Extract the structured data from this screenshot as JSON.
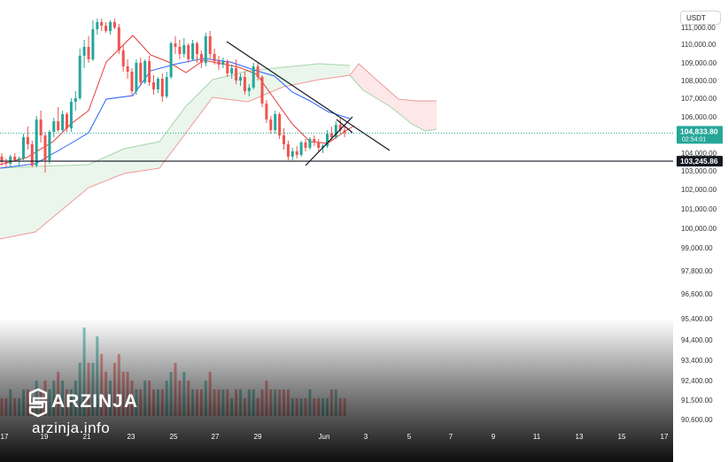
{
  "app": {
    "currency": "USDT",
    "watermark_brand": "ARZINJA",
    "watermark_url": "arzinja.info"
  },
  "colors": {
    "up": "#26a69a",
    "down": "#ef5350",
    "tenkan": "#e53935",
    "kijun": "#2962ff",
    "cloud_green_line": "#a5d6a7",
    "cloud_green_fill": "#e8f5e9",
    "cloud_red_line": "#ef9a9a",
    "cloud_red_fill": "#fde7e7",
    "current_price_label": "#26a69a",
    "level_label": "#131722"
  },
  "chart_data": {
    "type": "candlestick",
    "title": "",
    "y_tick_labels": [
      "111,000.00",
      "110,000.00",
      "109,000.00",
      "108,000.00",
      "107,000.00",
      "106,000.00",
      "104,000.00",
      "103,000.00",
      "102,000.00",
      "101,000.00",
      "100,000.00",
      "99,000.00",
      "97,800.00",
      "96,600.00",
      "95,400.00",
      "94,400.00",
      "93,400.00",
      "92,400.00",
      "91,500.00",
      "90,600.00"
    ],
    "x_tick_labels": [
      "17",
      "19",
      "21",
      "23",
      "25",
      "27",
      "29",
      "Jun",
      "3",
      "5",
      "7",
      "9",
      "11",
      "13",
      "15",
      "17"
    ],
    "ylim": [
      102500,
      111200
    ],
    "current_price": 104833.8,
    "current_price_label": "104,833.80",
    "countdown": "02:54:01",
    "horizontal_level": 103245.86,
    "horizontal_level_label": "103,245.86",
    "candles": [
      [
        103500,
        103700,
        103000,
        103200
      ],
      [
        103200,
        103400,
        102900,
        103100
      ],
      [
        103100,
        103600,
        102900,
        103500
      ],
      [
        103500,
        103700,
        103200,
        103300
      ],
      [
        103300,
        103500,
        103000,
        103400
      ],
      [
        103400,
        104800,
        103300,
        104600
      ],
      [
        104600,
        105200,
        103900,
        104200
      ],
      [
        104200,
        104400,
        102900,
        103000
      ],
      [
        103000,
        105800,
        102900,
        105600
      ],
      [
        105600,
        106100,
        104300,
        104700
      ],
      [
        104700,
        104900,
        102600,
        103300
      ],
      [
        103300,
        105000,
        103100,
        104900
      ],
      [
        104900,
        105700,
        104600,
        105500
      ],
      [
        105500,
        106300,
        104900,
        105000
      ],
      [
        105000,
        106100,
        104900,
        105900
      ],
      [
        105900,
        106000,
        104900,
        105100
      ],
      [
        105100,
        106800,
        104900,
        106600
      ],
      [
        106600,
        107200,
        106100,
        106800
      ],
      [
        106800,
        109600,
        106700,
        109200
      ],
      [
        109200,
        110100,
        108500,
        109700
      ],
      [
        109700,
        110300,
        108800,
        109000
      ],
      [
        109000,
        111200,
        108900,
        110700
      ],
      [
        110700,
        111300,
        110400,
        111100
      ],
      [
        111100,
        111300,
        110600,
        110900
      ],
      [
        110900,
        111100,
        110500,
        110600
      ],
      [
        110600,
        111200,
        110400,
        111100
      ],
      [
        111100,
        111300,
        110700,
        110800
      ],
      [
        110800,
        111000,
        109300,
        109500
      ],
      [
        109500,
        109800,
        108300,
        108600
      ],
      [
        108600,
        109000,
        107900,
        108300
      ],
      [
        108300,
        108500,
        106900,
        107200
      ],
      [
        107200,
        109000,
        107000,
        108800
      ],
      [
        108800,
        109100,
        107500,
        107700
      ],
      [
        107700,
        109000,
        107600,
        108900
      ],
      [
        108900,
        109200,
        107500,
        107700
      ],
      [
        107700,
        108100,
        107000,
        107300
      ],
      [
        107300,
        108000,
        107100,
        107900
      ],
      [
        107900,
        108200,
        106600,
        106900
      ],
      [
        106900,
        108300,
        106800,
        108000
      ],
      [
        108000,
        110000,
        107900,
        109900
      ],
      [
        109900,
        110300,
        109300,
        109700
      ],
      [
        109700,
        110100,
        109000,
        109300
      ],
      [
        109300,
        110200,
        109100,
        109800
      ],
      [
        109800,
        109900,
        108800,
        109000
      ],
      [
        109000,
        110100,
        108900,
        109900
      ],
      [
        109900,
        110000,
        108800,
        109300
      ],
      [
        109300,
        109500,
        108500,
        108800
      ],
      [
        108800,
        110500,
        108600,
        110300
      ],
      [
        110300,
        110600,
        109000,
        109300
      ],
      [
        109300,
        109600,
        108700,
        108900
      ],
      [
        108900,
        109200,
        108400,
        108700
      ],
      [
        108700,
        109100,
        108500,
        108900
      ],
      [
        108900,
        109000,
        108000,
        108200
      ],
      [
        108200,
        108700,
        107900,
        108500
      ],
      [
        108500,
        109000,
        107600,
        107800
      ],
      [
        107800,
        108200,
        107500,
        108000
      ],
      [
        108000,
        108300,
        107000,
        107200
      ],
      [
        107200,
        107600,
        106900,
        107400
      ],
      [
        107400,
        108800,
        107300,
        108600
      ],
      [
        108600,
        108800,
        107800,
        108000
      ],
      [
        108000,
        108100,
        106300,
        106500
      ],
      [
        106500,
        106700,
        105400,
        105600
      ],
      [
        105600,
        105800,
        104800,
        105000
      ],
      [
        105000,
        106100,
        104800,
        105900
      ],
      [
        105900,
        106000,
        104500,
        104700
      ],
      [
        104700,
        105100,
        103900,
        104200
      ],
      [
        104200,
        104400,
        103300,
        103500
      ],
      [
        103500,
        104000,
        103300,
        103800
      ],
      [
        103800,
        104100,
        103400,
        103600
      ],
      [
        103600,
        104400,
        103500,
        104300
      ],
      [
        104300,
        104500,
        103800,
        104000
      ],
      [
        104000,
        104600,
        103900,
        104500
      ],
      [
        104500,
        104700,
        104100,
        104300
      ],
      [
        104300,
        104500,
        103800,
        104000
      ],
      [
        104000,
        104200,
        103700,
        104100
      ],
      [
        104100,
        105000,
        104000,
        104800
      ],
      [
        104800,
        105200,
        104400,
        104600
      ],
      [
        104600,
        105500,
        104500,
        105300
      ],
      [
        105300,
        105700,
        104800,
        105000
      ],
      [
        105000,
        105300,
        104600,
        104834
      ]
    ],
    "volumes": [
      2,
      2,
      3,
      2,
      2,
      3,
      3,
      2,
      4,
      3,
      4,
      3,
      4,
      5,
      4,
      3,
      3,
      4,
      6,
      10,
      6,
      6,
      9,
      7,
      5,
      4,
      6,
      7,
      5,
      5,
      4,
      3,
      3,
      4,
      4,
      3,
      3,
      3,
      4,
      5,
      6,
      4,
      5,
      4,
      3,
      3,
      3,
      4,
      5,
      3,
      3,
      3,
      3,
      2,
      3,
      3,
      2,
      3,
      3,
      2,
      3,
      4,
      3,
      3,
      3,
      3,
      3,
      2,
      2,
      2,
      2,
      3,
      2,
      2,
      2,
      2,
      3,
      3,
      2,
      2
    ],
    "volume_colors": "per-candle direction"
  }
}
